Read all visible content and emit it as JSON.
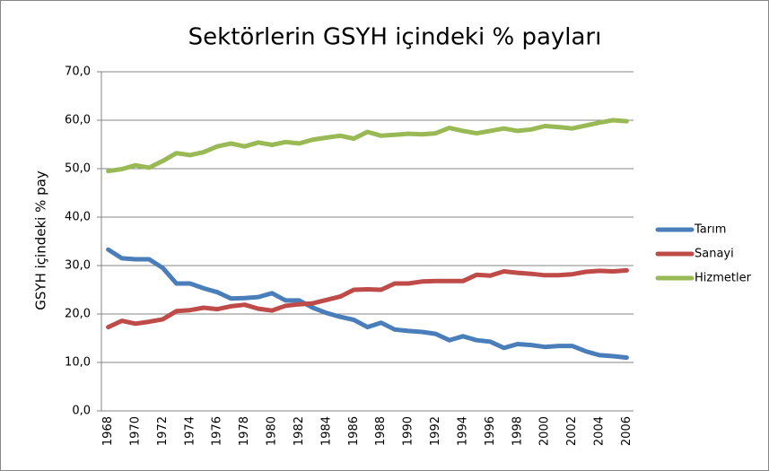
{
  "chart_data": {
    "type": "line",
    "title": "Sektörlerin GSYH içindeki % payları",
    "y_label": "GSYH içindeki % pay",
    "categories": [
      "1968",
      null,
      "1970",
      null,
      "1972",
      null,
      "1974",
      null,
      "1976",
      null,
      "1978",
      null,
      "1980",
      null,
      "1982",
      null,
      "1984",
      null,
      "1986",
      null,
      "1988",
      null,
      "1990",
      null,
      "1992",
      null,
      "1994",
      null,
      "1996",
      null,
      "1998",
      null,
      "2000",
      null,
      "2002",
      null,
      "2004",
      null,
      "2006"
    ],
    "series": [
      {
        "name": "Tarım",
        "color": "#4a7ebb",
        "values": [
          33.3,
          31.5,
          31.3,
          31.3,
          29.5,
          26.3,
          26.3,
          25.3,
          24.5,
          23.2,
          23.3,
          23.5,
          24.3,
          22.8,
          22.8,
          21.3,
          20.2,
          19.4,
          18.8,
          17.3,
          18.2,
          16.8,
          16.5,
          16.3,
          15.9,
          14.6,
          15.4,
          14.6,
          14.3,
          13.0,
          13.8,
          13.6,
          13.2,
          13.4,
          13.4,
          12.3,
          11.5,
          11.3,
          11.0
        ]
      },
      {
        "name": "Sanayi",
        "color": "#be4b48",
        "values": [
          17.3,
          18.6,
          18.0,
          18.4,
          18.9,
          20.6,
          20.8,
          21.3,
          21.0,
          21.6,
          21.9,
          21.1,
          20.7,
          21.7,
          22.0,
          22.2,
          22.9,
          23.6,
          25.0,
          25.1,
          25.0,
          26.3,
          26.3,
          26.7,
          26.8,
          26.8,
          26.8,
          28.1,
          27.9,
          28.8,
          28.5,
          28.3,
          28.0,
          28.0,
          28.2,
          28.7,
          28.9,
          28.8,
          29.0
        ]
      },
      {
        "name": "Hizmetler",
        "color": "#98b954",
        "values": [
          49.5,
          49.9,
          50.7,
          50.2,
          51.6,
          53.2,
          52.8,
          53.4,
          54.6,
          55.2,
          54.6,
          55.4,
          54.9,
          55.5,
          55.2,
          56.0,
          56.4,
          56.8,
          56.2,
          57.6,
          56.8,
          57.0,
          57.2,
          57.1,
          57.3,
          58.4,
          57.8,
          57.3,
          57.8,
          58.3,
          57.8,
          58.1,
          58.8,
          58.6,
          58.3,
          58.9,
          59.5,
          60.0,
          59.8
        ]
      }
    ],
    "ylim": [
      0,
      70
    ],
    "yticks": [
      {
        "value": 0,
        "label": "0,0"
      },
      {
        "value": 10,
        "label": "10,0"
      },
      {
        "value": 20,
        "label": "20,0"
      },
      {
        "value": 30,
        "label": "30,0"
      },
      {
        "value": 40,
        "label": "40,0"
      },
      {
        "value": 50,
        "label": "50,0"
      },
      {
        "value": 60,
        "label": "60,0"
      },
      {
        "value": 70,
        "label": "70,0"
      }
    ],
    "grid": true,
    "legend": "right"
  }
}
